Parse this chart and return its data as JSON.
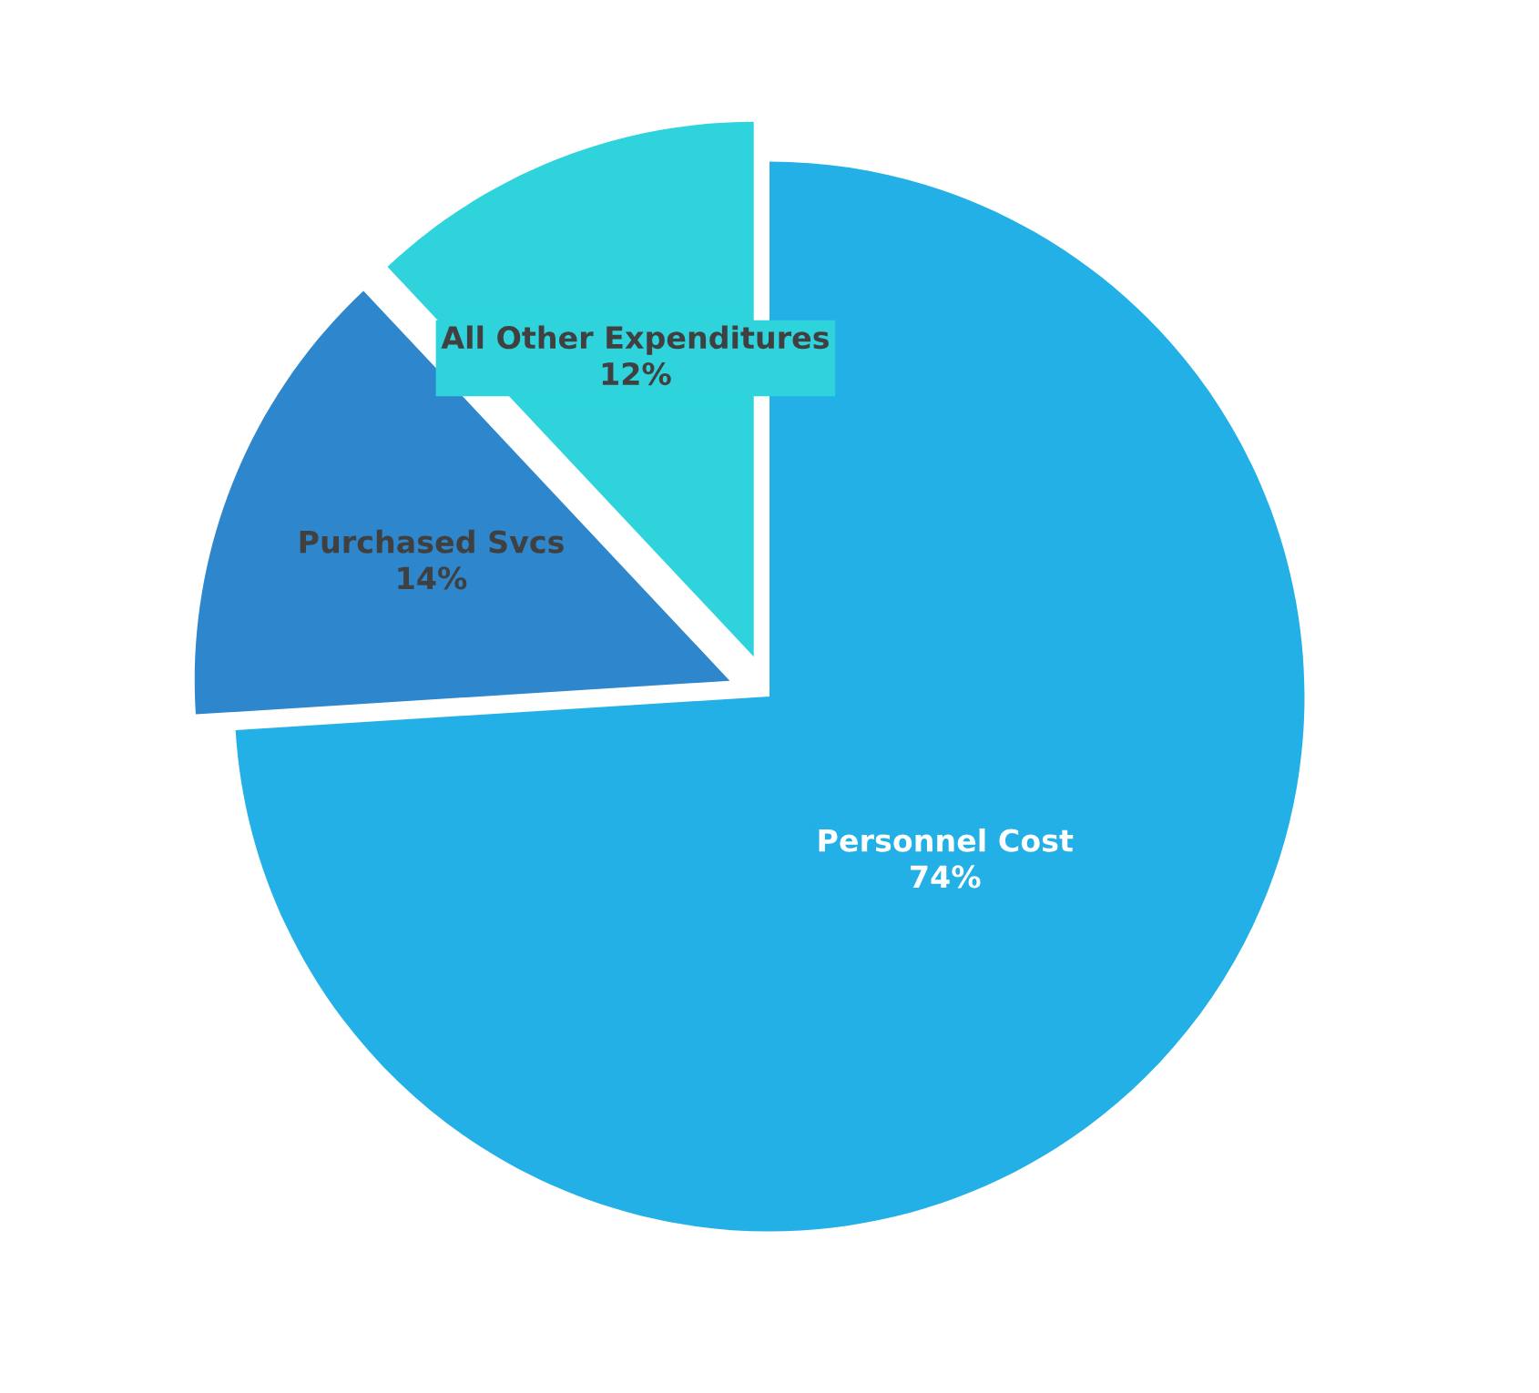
{
  "chart_data": {
    "type": "pie",
    "categories": [
      "Personnel Cost",
      "Purchased Svcs",
      "All Other Expenditures"
    ],
    "values": [
      74,
      14,
      12
    ],
    "value_labels": [
      "74%",
      "14%",
      "12%"
    ],
    "colors": [
      "#22b0e6",
      "#2e86cc",
      "#2ed3dc"
    ]
  }
}
